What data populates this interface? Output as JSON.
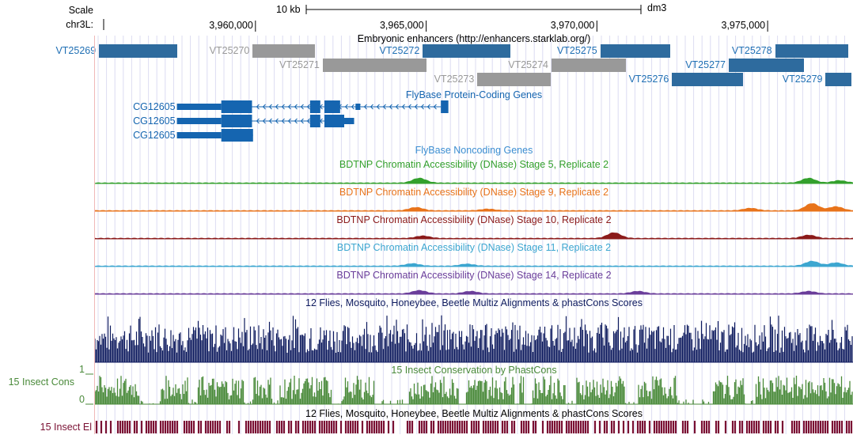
{
  "ruler": {
    "scale_label": "Scale",
    "chrom_label": "chr3L:",
    "scale_bar_text": "10 kb",
    "assembly": "dm3",
    "positions": [
      {
        "label": "3,960,000",
        "pos": 3960000
      },
      {
        "label": "3,965,000",
        "pos": 3965000
      },
      {
        "label": "3,970,000",
        "pos": 3970000
      },
      {
        "label": "3,975,000",
        "pos": 3975000
      }
    ]
  },
  "enhancers": {
    "title": "Embryonic enhancers (http://enhancers.starklab.org/)",
    "colors": {
      "active": "#2e6b9e",
      "inactive": "#999999"
    },
    "items": [
      {
        "name": "VT25269",
        "start": 3955420,
        "end": 3957700,
        "row": 0,
        "active": true
      },
      {
        "name": "VT25270",
        "start": 3959920,
        "end": 3961750,
        "row": 0,
        "active": false
      },
      {
        "name": "VT25271",
        "start": 3961970,
        "end": 3965000,
        "row": 1,
        "active": false
      },
      {
        "name": "VT25272",
        "start": 3964900,
        "end": 3967460,
        "row": 0,
        "active": true
      },
      {
        "name": "VT25273",
        "start": 3966500,
        "end": 3968640,
        "row": 2,
        "active": false
      },
      {
        "name": "VT25274",
        "start": 3968670,
        "end": 3970840,
        "row": 1,
        "active": false
      },
      {
        "name": "VT25275",
        "start": 3970100,
        "end": 3972140,
        "row": 0,
        "active": true
      },
      {
        "name": "VT25276",
        "start": 3972200,
        "end": 3974280,
        "row": 2,
        "active": true
      },
      {
        "name": "VT25277",
        "start": 3973860,
        "end": 3976070,
        "row": 1,
        "active": true
      },
      {
        "name": "VT25278",
        "start": 3975220,
        "end": 3977370,
        "row": 0,
        "active": true
      },
      {
        "name": "VT25279",
        "start": 3976700,
        "end": 3977450,
        "row": 2,
        "active": true
      }
    ]
  },
  "genes": {
    "title": "FlyBase Protein-Coding Genes",
    "color": "#1565b0",
    "strand": "-",
    "transcripts": [
      {
        "name": "CG12605",
        "utr": [
          [
            3957700,
            3959000
          ],
          [
            3962930,
            3963070
          ]
        ],
        "cds": [
          [
            3959000,
            3959900
          ],
          [
            3961600,
            3961900
          ],
          [
            3962020,
            3962480
          ],
          [
            3965430,
            3965650
          ]
        ],
        "intron": [
          3959900,
          3965430
        ]
      },
      {
        "name": "CG12605",
        "utr": [
          [
            3957700,
            3959000
          ],
          [
            3962600,
            3962890
          ]
        ],
        "cds": [
          [
            3959000,
            3959900
          ],
          [
            3961600,
            3961900
          ],
          [
            3962020,
            3962600
          ]
        ],
        "intron": [
          3959900,
          3962600
        ]
      },
      {
        "name": "CG12605",
        "utr": [
          [
            3957700,
            3959000
          ]
        ],
        "cds": [
          [
            3959000,
            3959900
          ],
          [
            3959880,
            3959930
          ]
        ],
        "intron": [
          3959900,
          3959930
        ]
      }
    ]
  },
  "noncoding": {
    "title": "FlyBase Noncoding Genes"
  },
  "dnase": [
    {
      "title": "BDTNP Chromatin Accessibility (DNase) Stage 5, Replicate 2",
      "color": "#33a02c",
      "peaks": [
        {
          "pos": 3964800,
          "height": 0.6
        },
        {
          "pos": 3976200,
          "height": 0.6
        },
        {
          "pos": 3977100,
          "height": 0.3
        }
      ]
    },
    {
      "title": "BDTNP Chromatin Accessibility (DNase) Stage 9, Replicate 2",
      "color": "#e8731a",
      "peaks": [
        {
          "pos": 3964700,
          "height": 0.4
        },
        {
          "pos": 3966800,
          "height": 0.2
        },
        {
          "pos": 3974500,
          "height": 0.3
        },
        {
          "pos": 3976300,
          "height": 0.9
        },
        {
          "pos": 3977000,
          "height": 0.5
        }
      ]
    },
    {
      "title": "BDTNP Chromatin Accessibility (DNase) Stage 10, Replicate 2",
      "color": "#8b1a1a",
      "peaks": [
        {
          "pos": 3964900,
          "height": 0.3
        },
        {
          "pos": 3970500,
          "height": 0.7
        },
        {
          "pos": 3976200,
          "height": 0.4
        }
      ]
    },
    {
      "title": "BDTNP Chromatin Accessibility (DNase) Stage 11, Replicate 2",
      "color": "#3ca6d0",
      "peaks": [
        {
          "pos": 3964600,
          "height": 0.3
        },
        {
          "pos": 3966200,
          "height": 0.25
        },
        {
          "pos": 3976300,
          "height": 0.6
        },
        {
          "pos": 3977000,
          "height": 0.4
        }
      ]
    },
    {
      "title": "BDTNP Chromatin Accessibility (DNase) Stage 14, Replicate 2",
      "color": "#6a3d9a",
      "peaks": [
        {
          "pos": 3964800,
          "height": 0.4
        },
        {
          "pos": 3966300,
          "height": 0.3
        },
        {
          "pos": 3971200,
          "height": 0.3
        },
        {
          "pos": 3976200,
          "height": 0.3
        }
      ]
    }
  ],
  "multiz": {
    "title": "12 Flies, Mosquito, Honeybee, Beetle Multiz Alignments & phastCons Scores",
    "color": "#0d1a5e"
  },
  "conservation": {
    "title": "15 Insect Conservation by PhastCons",
    "left_label": "15 Insect Cons",
    "axis_max": "1",
    "axis_min": "0",
    "color": "#4a8a3a"
  },
  "elements": {
    "title": "12 Flies, Mosquito, Honeybee, Beetle Multiz Alignments & phastCons Scores",
    "left_label": "15 Insect El",
    "color": "#7a1033"
  }
}
